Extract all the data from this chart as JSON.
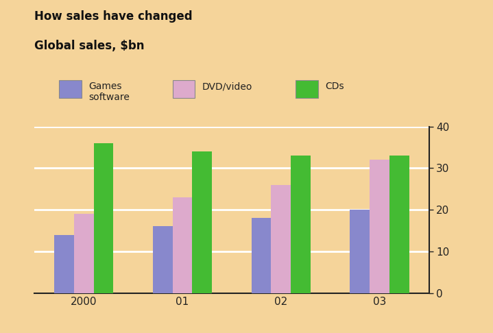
{
  "title_line1": "How sales have changed",
  "title_line2": "Global sales, $bn",
  "categories": [
    "2000",
    "01",
    "02",
    "03"
  ],
  "series": {
    "Games software": [
      14,
      16,
      18,
      20
    ],
    "DVD/video": [
      19,
      23,
      26,
      32
    ],
    "CDs": [
      36,
      34,
      33,
      33
    ]
  },
  "colors": {
    "Games software": "#8888cc",
    "DVD/video": "#ddaacc",
    "CDs": "#44bb33"
  },
  "background_color": "#f5d49a",
  "ylim": [
    0,
    40
  ],
  "yticks": [
    0,
    10,
    20,
    30,
    40
  ],
  "bar_width": 0.2,
  "grid_color": "#ffffff",
  "axis_color": "#222222",
  "title_fontsize": 12,
  "legend_fontsize": 10,
  "tick_fontsize": 11
}
